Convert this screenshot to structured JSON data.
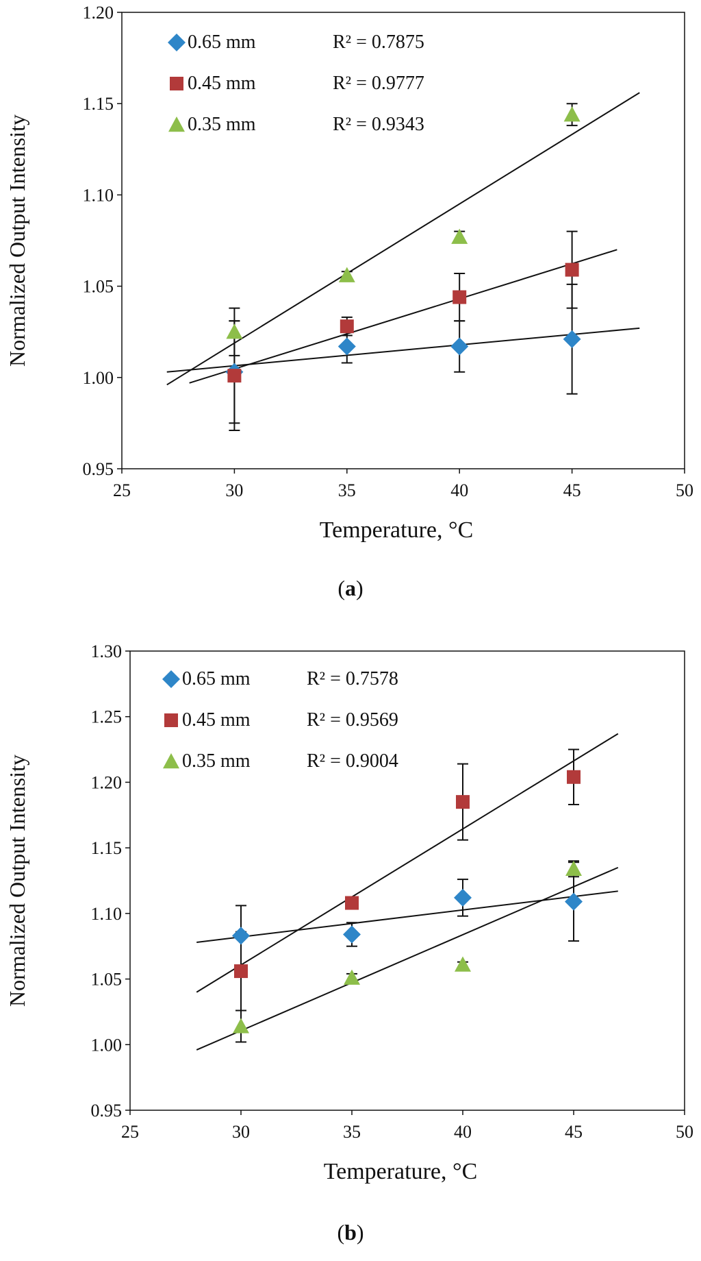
{
  "chart_data": [
    {
      "type": "scatter",
      "panel_label": "a",
      "xlabel": "Temperature, °C",
      "ylabel": "Normalized Output Intensity",
      "xlim": [
        25,
        50
      ],
      "ylim": [
        0.95,
        1.2
      ],
      "x_ticks": [
        "25",
        "30",
        "35",
        "40",
        "45",
        "50"
      ],
      "y_ticks": [
        "0.95",
        "1.00",
        "1.05",
        "1.10",
        "1.15",
        "1.20"
      ],
      "grid": false,
      "legend_position": "top-left",
      "series": [
        {
          "name": "0.65 mm",
          "marker": "diamond",
          "color": "#2E86C8",
          "r2_label": "R² = 0.7875",
          "points": [
            {
              "x": 30,
              "y": 1.003,
              "err": 0.028
            },
            {
              "x": 35,
              "y": 1.017,
              "err": 0.009
            },
            {
              "x": 40,
              "y": 1.017,
              "err": 0.014
            },
            {
              "x": 45,
              "y": 1.021,
              "err": 0.03
            }
          ],
          "trendline": {
            "x": [
              27,
              48
            ],
            "y": [
              1.003,
              1.027
            ]
          }
        },
        {
          "name": "0.45 mm",
          "marker": "square",
          "color": "#B23A3A",
          "r2_label": "R² = 0.9777",
          "points": [
            {
              "x": 30,
              "y": 1.001,
              "err": 0.03
            },
            {
              "x": 35,
              "y": 1.028,
              "err": 0.005
            },
            {
              "x": 40,
              "y": 1.044,
              "err": 0.013
            },
            {
              "x": 45,
              "y": 1.059,
              "err": 0.021
            }
          ],
          "trendline": {
            "x": [
              28,
              47
            ],
            "y": [
              0.997,
              1.07
            ]
          }
        },
        {
          "name": "0.35 mm",
          "marker": "triangle",
          "color": "#8DBE4A",
          "r2_label": "R² = 0.9343",
          "points": [
            {
              "x": 30,
              "y": 1.025,
              "err": 0.013
            },
            {
              "x": 35,
              "y": 1.056,
              "err": 0.002
            },
            {
              "x": 40,
              "y": 1.077,
              "err": 0.003
            },
            {
              "x": 45,
              "y": 1.144,
              "err": 0.006
            }
          ],
          "trendline": {
            "x": [
              27,
              48
            ],
            "y": [
              0.996,
              1.156
            ]
          }
        }
      ]
    },
    {
      "type": "scatter",
      "panel_label": "b",
      "xlabel": "Temperature, °C",
      "ylabel": "Normalized Output Intensity",
      "xlim": [
        25,
        50
      ],
      "ylim": [
        0.95,
        1.3
      ],
      "x_ticks": [
        "25",
        "30",
        "35",
        "40",
        "45",
        "50"
      ],
      "y_ticks": [
        "0.95",
        "1.00",
        "1.05",
        "1.10",
        "1.15",
        "1.20",
        "1.25",
        "1.30"
      ],
      "grid": false,
      "legend_position": "top-left",
      "series": [
        {
          "name": "0.65 mm",
          "marker": "diamond",
          "color": "#2E86C8",
          "r2_label": "R² = 0.7578",
          "points": [
            {
              "x": 30,
              "y": 1.083,
              "err": 0.023
            },
            {
              "x": 35,
              "y": 1.084,
              "err": 0.009
            },
            {
              "x": 40,
              "y": 1.112,
              "err": 0.014
            },
            {
              "x": 45,
              "y": 1.109,
              "err": 0.03
            }
          ],
          "trendline": {
            "x": [
              28,
              47
            ],
            "y": [
              1.078,
              1.117
            ]
          }
        },
        {
          "name": "0.45 mm",
          "marker": "square",
          "color": "#B23A3A",
          "r2_label": "R² = 0.9569",
          "points": [
            {
              "x": 30,
              "y": 1.056,
              "err": 0.03
            },
            {
              "x": 35,
              "y": 1.108,
              "err": 0.002
            },
            {
              "x": 40,
              "y": 1.185,
              "err": 0.029
            },
            {
              "x": 45,
              "y": 1.204,
              "err": 0.021
            }
          ],
          "trendline": {
            "x": [
              28,
              47
            ],
            "y": [
              1.04,
              1.237
            ]
          }
        },
        {
          "name": "0.35 mm",
          "marker": "triangle",
          "color": "#8DBE4A",
          "r2_label": "R² = 0.9004",
          "points": [
            {
              "x": 30,
              "y": 1.014,
              "err": 0.012
            },
            {
              "x": 35,
              "y": 1.051,
              "err": 0.003
            },
            {
              "x": 40,
              "y": 1.061,
              "err": 0.002
            },
            {
              "x": 45,
              "y": 1.134,
              "err": 0.006
            }
          ],
          "trendline": {
            "x": [
              28,
              47
            ],
            "y": [
              0.996,
              1.135
            ]
          }
        }
      ]
    }
  ]
}
